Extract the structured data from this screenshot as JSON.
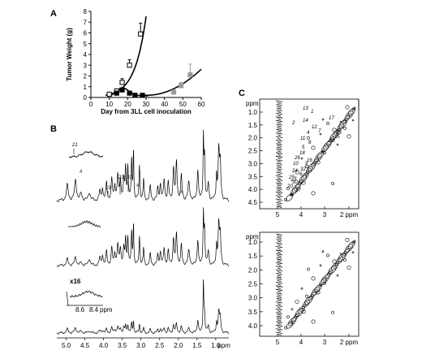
{
  "panels": {
    "a": "A",
    "b": "B",
    "c": "C"
  },
  "chart_data": {
    "type": "scatter",
    "xlabel": "Day from 3LL cell inoculation",
    "ylabel": "Tumor Weight (g)",
    "xlim": [
      0,
      60
    ],
    "ylim": [
      0,
      8
    ],
    "xticks": [
      "0",
      "10",
      "20",
      "30",
      "40",
      "50",
      "60"
    ],
    "yticks": [
      "0",
      "1",
      "2",
      "3",
      "4",
      "5",
      "6",
      "7",
      "8"
    ],
    "series": [
      {
        "marker": "open-square",
        "x": [
          10,
          14,
          17,
          21,
          27
        ],
        "y": [
          0.3,
          0.6,
          1.4,
          3.0,
          5.9
        ],
        "err": [
          0.05,
          0.1,
          0.35,
          0.5,
          1.0
        ]
      },
      {
        "marker": "filled-square",
        "x": [
          14,
          17,
          21,
          24,
          28
        ],
        "y": [
          0.4,
          0.7,
          0.4,
          0.2,
          0.2
        ],
        "err": [
          0.05,
          0.1,
          0.1,
          0.05,
          0.05
        ]
      },
      {
        "marker": "grey-square",
        "x": [
          45,
          49,
          54
        ],
        "y": [
          0.5,
          1.1,
          2.1
        ],
        "err": [
          0.1,
          0.3,
          1.0
        ]
      }
    ]
  },
  "spectra": {
    "peak_labels": [
      "21",
      "19",
      "23",
      "31",
      "#",
      "#",
      "#",
      "x16"
    ],
    "inset_ticks": [
      "8.6",
      "8.4",
      "ppm"
    ],
    "axis_ticks": [
      "5.0",
      "4.5",
      "4.0",
      "3.5",
      "3.0",
      "2.5",
      "2.0",
      "1.5",
      "1.0",
      "ppm"
    ]
  },
  "cosy": {
    "y_ticks": [
      "ppm",
      "1.0",
      "1.5",
      "2.0",
      "2.5",
      "3.0",
      "3.5",
      "4.0",
      "4.5"
    ],
    "x_ticks": [
      "5",
      "4",
      "3",
      "2 ppm"
    ],
    "bottom_y_ticks": [
      "ppm",
      "1.0",
      "1.5",
      "2.0",
      "2.5",
      "3.0",
      "3.5",
      "4.0"
    ],
    "bottom_x_ticks": [
      "5",
      "4",
      "3",
      "2 ppm"
    ],
    "cross_labels": [
      "13",
      "1",
      "17",
      "14",
      "12",
      "2",
      "7",
      "4",
      "11",
      "15",
      "23",
      "28",
      "8",
      "5",
      "18",
      "26",
      "16",
      "10",
      "9",
      "32",
      "24",
      "6",
      "25",
      "3",
      "30",
      "20",
      "27"
    ]
  }
}
